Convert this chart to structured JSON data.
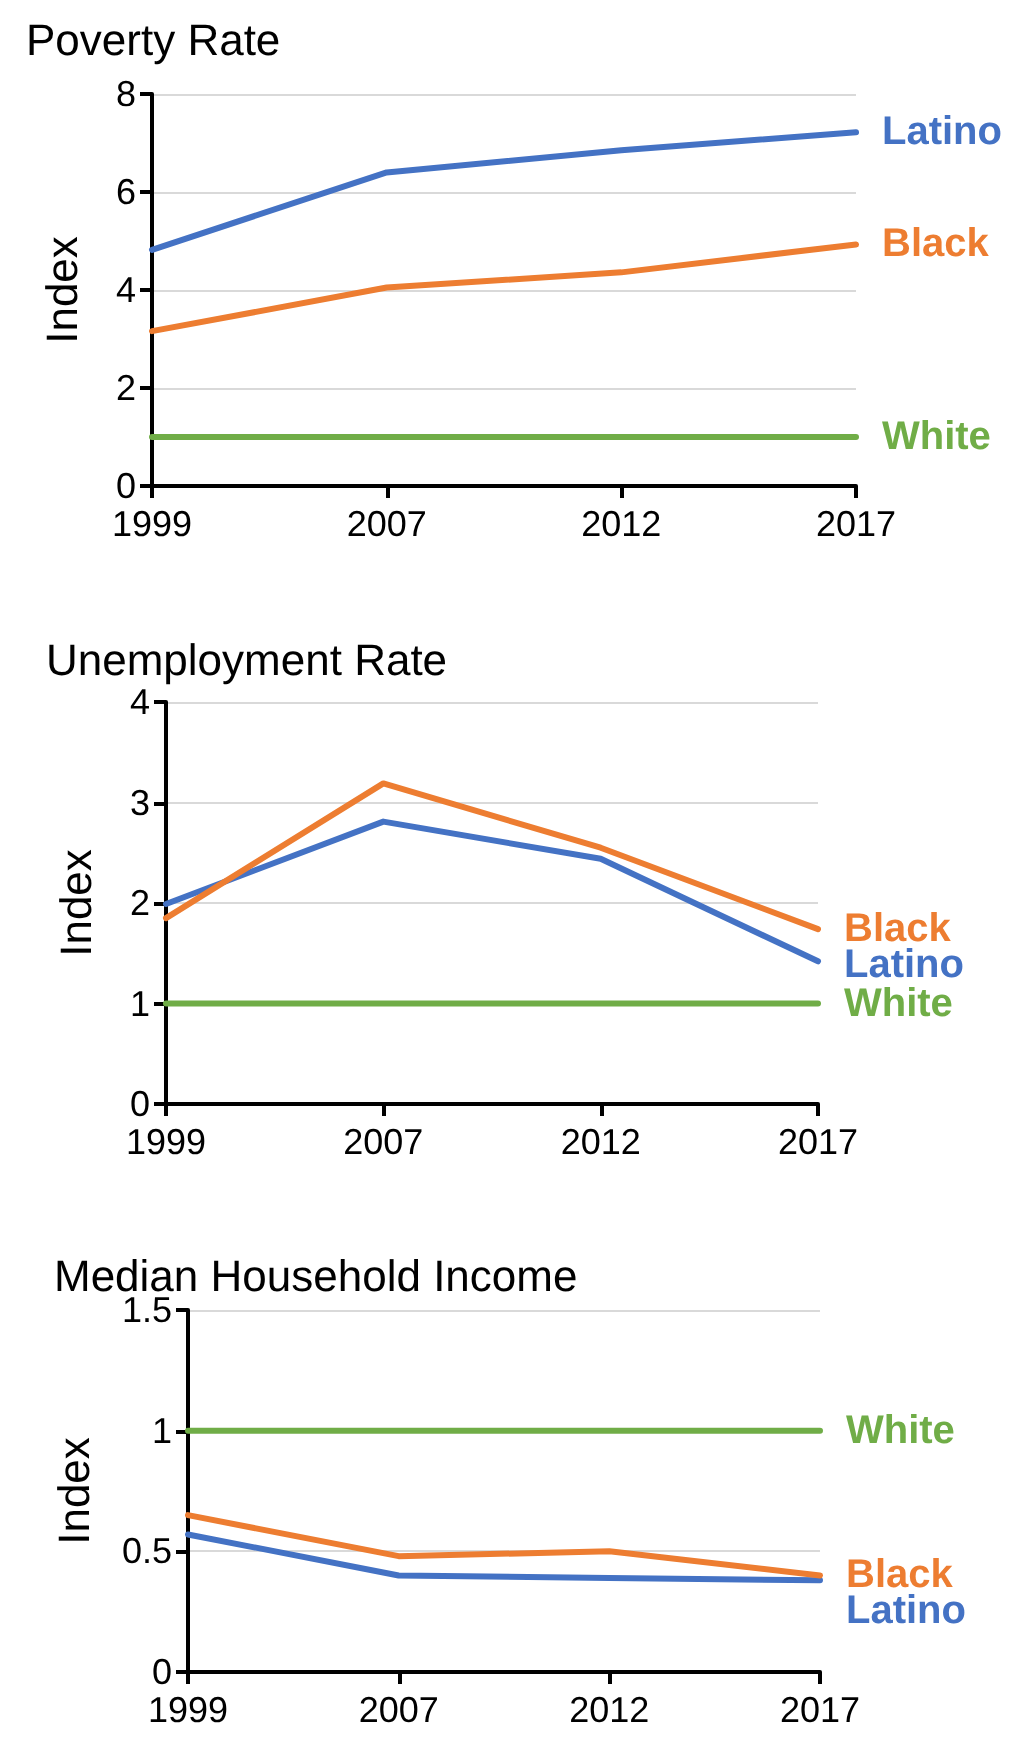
{
  "chart_data": [
    {
      "type": "line",
      "title": "Poverty Rate",
      "ylabel": "Index",
      "categories": [
        "1999",
        "2007",
        "2012",
        "2017"
      ],
      "series": [
        {
          "name": "Latino",
          "color": "#4472c4",
          "values": [
            4.82,
            6.4,
            6.85,
            7.22
          ]
        },
        {
          "name": "Black",
          "color": "#ed7d31",
          "values": [
            3.16,
            4.05,
            4.36,
            4.93
          ]
        },
        {
          "name": "White",
          "color": "#70ad47",
          "values": [
            1,
            1,
            1,
            1
          ]
        }
      ],
      "ylim": [
        0,
        8
      ],
      "yticks": [
        0,
        2,
        4,
        6,
        8
      ],
      "grid": "y",
      "legend": false,
      "marker": "none"
    },
    {
      "type": "line",
      "title": "Unemployment Rate",
      "ylabel": "Index",
      "categories": [
        "1999",
        "2007",
        "2012",
        "2017"
      ],
      "series": [
        {
          "name": "Latino",
          "color": "#4472c4",
          "values": [
            1.99,
            2.81,
            2.44,
            1.42
          ]
        },
        {
          "name": "Black",
          "color": "#ed7d31",
          "values": [
            1.85,
            3.19,
            2.55,
            1.74
          ]
        },
        {
          "name": "White",
          "color": "#70ad47",
          "values": [
            1,
            1,
            1,
            1
          ]
        }
      ],
      "ylim": [
        0,
        4
      ],
      "yticks": [
        0,
        1,
        2,
        3,
        4
      ],
      "grid": "y",
      "legend": false,
      "marker": "none"
    },
    {
      "type": "line",
      "title": "Median Household Income",
      "ylabel": "Index",
      "categories": [
        "1999",
        "2007",
        "2012",
        "2017"
      ],
      "series": [
        {
          "name": "Latino",
          "color": "#4472c4",
          "values": [
            0.57,
            0.4,
            0.39,
            0.38
          ]
        },
        {
          "name": "Black",
          "color": "#ed7d31",
          "values": [
            0.65,
            0.48,
            0.5,
            0.4
          ]
        },
        {
          "name": "White",
          "color": "#70ad47",
          "values": [
            1,
            1,
            1,
            1
          ]
        }
      ],
      "ylim": [
        0,
        1.5
      ],
      "yticks": [
        0,
        0.5,
        1,
        1.5
      ],
      "grid": "y",
      "legend": false,
      "marker": "none"
    }
  ]
}
